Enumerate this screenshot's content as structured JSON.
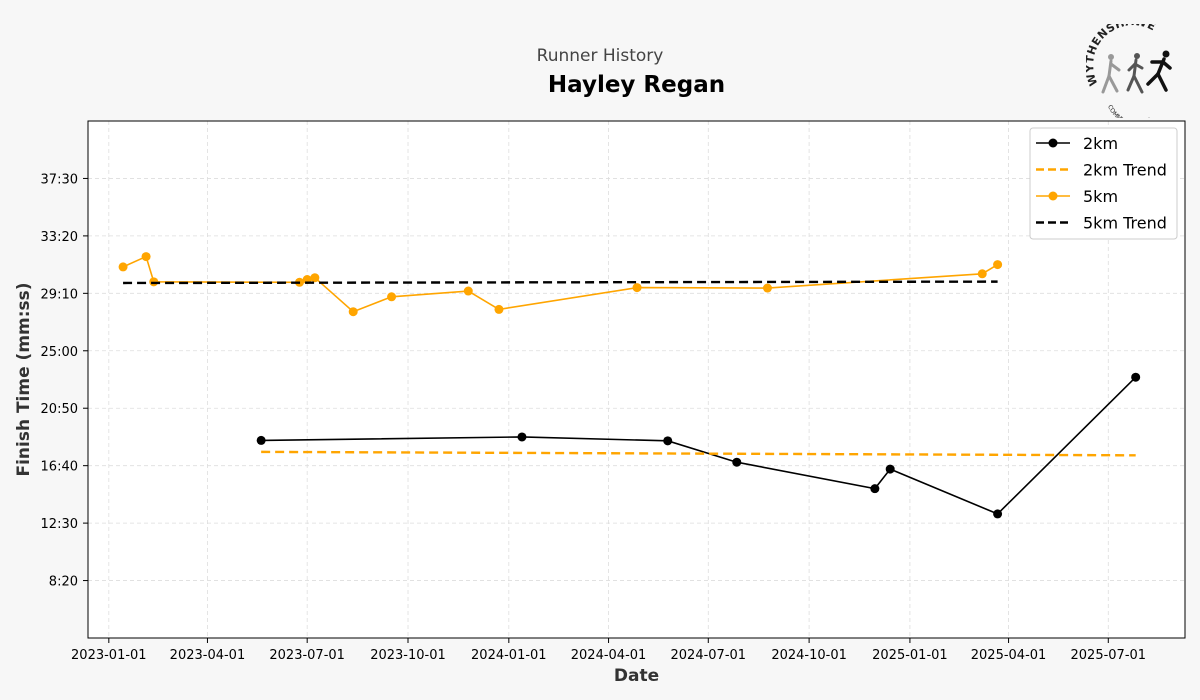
{
  "header": {
    "subtitle": "Runner History",
    "title": "Hayley Regan"
  },
  "logo": {
    "top_text": "WYTHENSHAWE",
    "bottom_text": "COMMUNITY RUN"
  },
  "chart_data": {
    "type": "line",
    "xlabel": "Date",
    "ylabel": "Finish Time (mm:ss)",
    "x_ticks": [
      "2023-01-01",
      "2023-04-01",
      "2023-07-01",
      "2023-10-01",
      "2024-01-01",
      "2024-04-01",
      "2024-07-01",
      "2024-10-01",
      "2025-01-01",
      "2025-04-01",
      "2025-07-01"
    ],
    "y_ticks": [
      "8:20",
      "12:30",
      "16:40",
      "20:50",
      "25:00",
      "29:10",
      "33:20",
      "37:30"
    ],
    "ylim": [
      "4:10",
      "41:40"
    ],
    "xlim": [
      "2022-12-13",
      "2025-09-09"
    ],
    "grid": true,
    "legend_position": "top-right",
    "series": [
      {
        "name": "2km",
        "color": "#000000",
        "style": "solid-markers",
        "points": [
          {
            "x": "2023-05-20",
            "y": "18:30"
          },
          {
            "x": "2024-01-13",
            "y": "18:45"
          },
          {
            "x": "2024-05-25",
            "y": "18:28"
          },
          {
            "x": "2024-07-27",
            "y": "16:55"
          },
          {
            "x": "2024-11-30",
            "y": "15:00"
          },
          {
            "x": "2024-12-14",
            "y": "16:25"
          },
          {
            "x": "2025-03-22",
            "y": "13:10"
          },
          {
            "x": "2025-07-26",
            "y": "23:05"
          }
        ]
      },
      {
        "name": "2km Trend",
        "color": "#ffa500",
        "style": "dashed",
        "points": [
          {
            "x": "2023-05-20",
            "y": "17:40"
          },
          {
            "x": "2025-07-26",
            "y": "17:25"
          }
        ]
      },
      {
        "name": "5km",
        "color": "#ffa500",
        "style": "solid-markers",
        "points": [
          {
            "x": "2023-01-14",
            "y": "31:05"
          },
          {
            "x": "2023-02-04",
            "y": "31:50"
          },
          {
            "x": "2023-02-11",
            "y": "30:00"
          },
          {
            "x": "2023-06-24",
            "y": "29:58"
          },
          {
            "x": "2023-07-01",
            "y": "30:10"
          },
          {
            "x": "2023-07-08",
            "y": "30:18"
          },
          {
            "x": "2023-08-12",
            "y": "27:50"
          },
          {
            "x": "2023-09-16",
            "y": "28:55"
          },
          {
            "x": "2023-11-25",
            "y": "29:20"
          },
          {
            "x": "2023-12-23",
            "y": "28:00"
          },
          {
            "x": "2024-04-27",
            "y": "29:35"
          },
          {
            "x": "2024-08-24",
            "y": "29:33"
          },
          {
            "x": "2025-03-08",
            "y": "30:35"
          },
          {
            "x": "2025-03-22",
            "y": "31:15"
          }
        ]
      },
      {
        "name": "5km Trend",
        "color": "#000000",
        "style": "dashed",
        "points": [
          {
            "x": "2023-01-14",
            "y": "29:55"
          },
          {
            "x": "2025-03-22",
            "y": "30:01"
          }
        ]
      }
    ]
  }
}
